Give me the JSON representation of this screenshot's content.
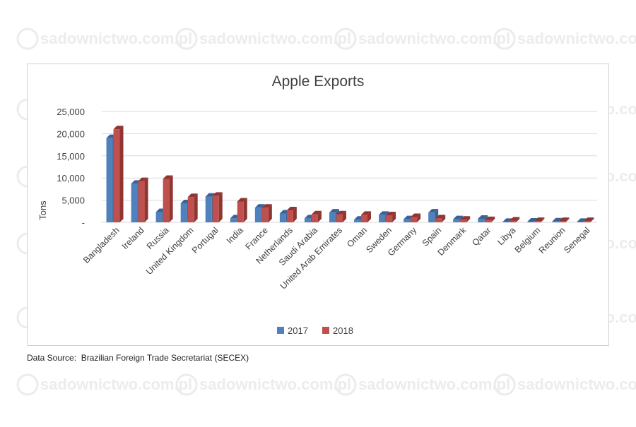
{
  "watermark": {
    "text": "sadownictwo.com.pl",
    "color": "#ececec"
  },
  "source": {
    "text": "Data Source:  Brazilian Foreign Trade Secretariat (SECEX)"
  },
  "colors": {
    "series_2017": "#4f81bd",
    "series_2017_side": "#3a6296",
    "series_2018": "#c0504d",
    "series_2018_side": "#8f3532",
    "grid": "#d9d9d9"
  },
  "chart_data": {
    "type": "bar",
    "title": "Apple Exports",
    "ylabel": "Tons",
    "xlabel": "",
    "ylim": [
      0,
      25000
    ],
    "yticks": [
      0,
      5000,
      10000,
      15000,
      20000,
      25000
    ],
    "ytick_labels": [
      "-",
      "5,000",
      "10,000",
      "15,000",
      "20,000",
      "25,000"
    ],
    "grid": true,
    "legend": "bottom",
    "categories": [
      "Bangladesh",
      "Ireland",
      "Russia",
      "United Kingdom",
      "Portugal",
      "India",
      "France",
      "Netherlands",
      "Saudi Arabia",
      "United Arab Emirates",
      "Oman",
      "Sweden",
      "Germany",
      "Spain",
      "Denmark",
      "Qatar",
      "Libya",
      "Belgium",
      "Reunion",
      "Senegal"
    ],
    "series": [
      {
        "name": "2017",
        "values": [
          19000,
          8700,
          2300,
          4300,
          5800,
          900,
          3300,
          2000,
          900,
          2200,
          600,
          1700,
          700,
          2200,
          700,
          800,
          100,
          150,
          200,
          100
        ]
      },
      {
        "name": "2018",
        "values": [
          21000,
          9300,
          9800,
          5700,
          6000,
          4700,
          3300,
          2700,
          1800,
          1800,
          1700,
          1600,
          1200,
          900,
          600,
          500,
          400,
          300,
          300,
          300
        ]
      }
    ]
  }
}
